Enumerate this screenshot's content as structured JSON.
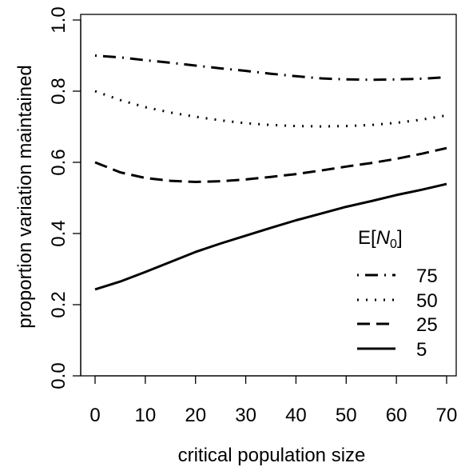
{
  "chart_data": {
    "type": "line",
    "title": "",
    "xlabel": "critical population size",
    "ylabel": "proportion variation maintained",
    "xlim": [
      0,
      70
    ],
    "ylim": [
      0,
      1
    ],
    "x_ticks": [
      "0",
      "10",
      "20",
      "30",
      "40",
      "50",
      "60",
      "70"
    ],
    "y_ticks": [
      "0.0",
      "0.2",
      "0.4",
      "0.6",
      "0.8",
      "1.0"
    ],
    "grid": false,
    "legend": {
      "title_prefix": "E[",
      "title_var": "N",
      "title_sub": "0",
      "title_suffix": "]",
      "position": "bottom-right"
    },
    "x": [
      0,
      5,
      10,
      15,
      20,
      25,
      30,
      35,
      40,
      45,
      50,
      55,
      60,
      65,
      70
    ],
    "series": [
      {
        "name": "75",
        "style": "dashdot",
        "values": [
          0.9,
          0.895,
          0.887,
          0.88,
          0.872,
          0.864,
          0.857,
          0.849,
          0.842,
          0.836,
          0.833,
          0.832,
          0.833,
          0.835,
          0.839
        ]
      },
      {
        "name": "50",
        "style": "dotted",
        "values": [
          0.8,
          0.775,
          0.755,
          0.74,
          0.728,
          0.718,
          0.71,
          0.705,
          0.702,
          0.701,
          0.702,
          0.705,
          0.711,
          0.72,
          0.732
        ]
      },
      {
        "name": "25",
        "style": "dashed",
        "values": [
          0.6,
          0.572,
          0.556,
          0.548,
          0.545,
          0.547,
          0.552,
          0.559,
          0.567,
          0.577,
          0.588,
          0.598,
          0.61,
          0.624,
          0.64
        ]
      },
      {
        "name": "5",
        "style": "solid",
        "values": [
          0.243,
          0.265,
          0.292,
          0.32,
          0.348,
          0.372,
          0.394,
          0.416,
          0.437,
          0.456,
          0.475,
          0.491,
          0.508,
          0.523,
          0.539
        ]
      }
    ]
  }
}
